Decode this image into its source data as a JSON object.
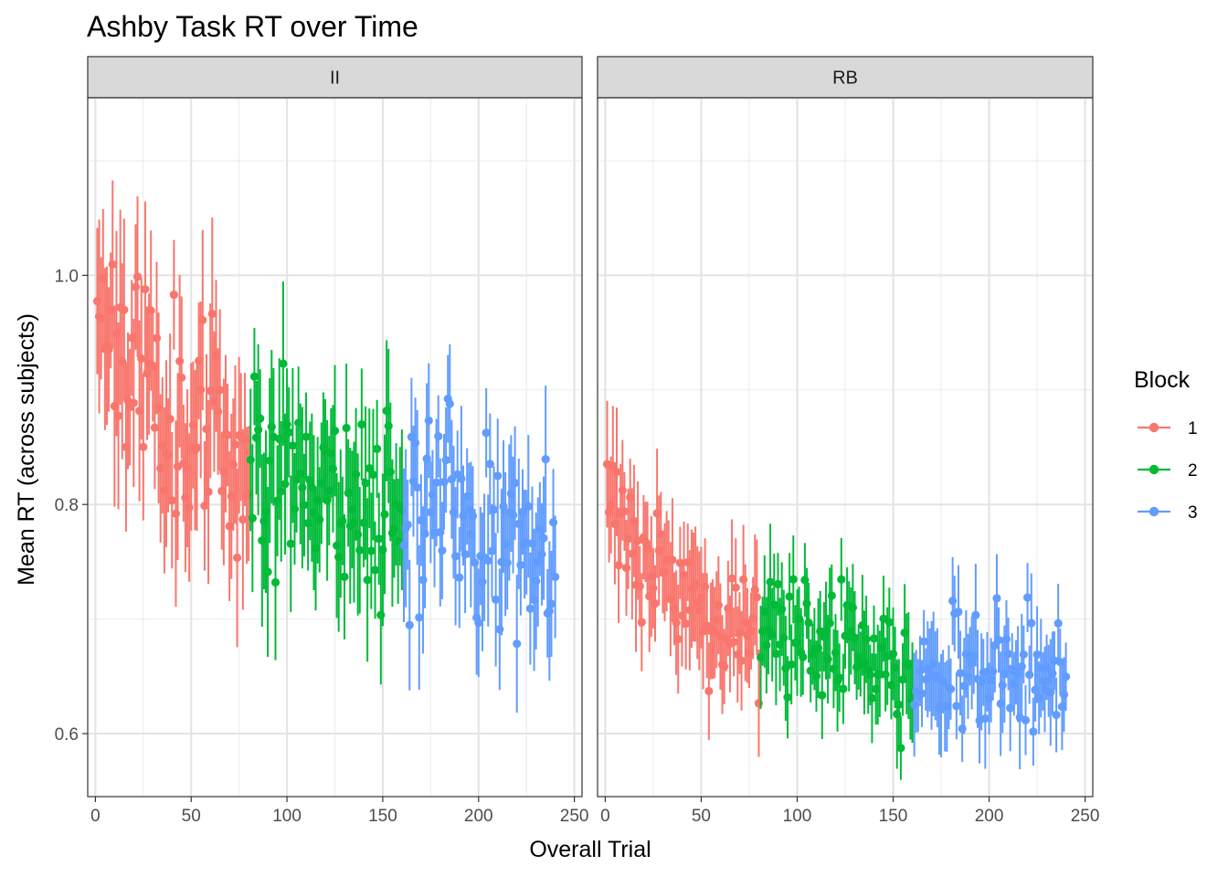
{
  "chart_data": {
    "type": "scatter",
    "subtype": "pointrange",
    "title": "Ashby Task RT over Time",
    "xlabel": "Overall Trial",
    "ylabel": "Mean RT (across subjects)",
    "xlim": [
      -4,
      254
    ],
    "ylim": [
      0.545,
      1.155
    ],
    "x_ticks": [
      0,
      50,
      100,
      150,
      200,
      250
    ],
    "y_ticks": [
      0.6,
      0.8,
      1.0
    ],
    "y_tick_labels": [
      "0.6",
      "0.8",
      "1.0"
    ],
    "grid": true,
    "legend": {
      "title": "Block",
      "placement": "right",
      "entries": [
        {
          "label": "1",
          "color": "#F8766D"
        },
        {
          "label": "2",
          "color": "#00BA38"
        },
        {
          "label": "3",
          "color": "#619CFF"
        }
      ]
    },
    "trials_per_block": 80,
    "total_trials": 240,
    "facets": [
      {
        "label": "II",
        "anchors": [
          {
            "x": 1,
            "y": 0.99,
            "err": 0.07
          },
          {
            "x": 20,
            "y": 0.92,
            "err": 0.07
          },
          {
            "x": 40,
            "y": 0.88,
            "err": 0.065
          },
          {
            "x": 60,
            "y": 0.86,
            "err": 0.065
          },
          {
            "x": 80,
            "y": 0.84,
            "err": 0.06
          },
          {
            "x": 100,
            "y": 0.835,
            "err": 0.055
          },
          {
            "x": 120,
            "y": 0.82,
            "err": 0.055
          },
          {
            "x": 140,
            "y": 0.8,
            "err": 0.055
          },
          {
            "x": 160,
            "y": 0.81,
            "err": 0.055
          },
          {
            "x": 180,
            "y": 0.8,
            "err": 0.05
          },
          {
            "x": 200,
            "y": 0.775,
            "err": 0.05
          },
          {
            "x": 220,
            "y": 0.76,
            "err": 0.05
          },
          {
            "x": 240,
            "y": 0.755,
            "err": 0.05
          }
        ],
        "noise": 0.045,
        "seed": 11
      },
      {
        "label": "RB",
        "anchors": [
          {
            "x": 1,
            "y": 0.8,
            "err": 0.05
          },
          {
            "x": 20,
            "y": 0.76,
            "err": 0.045
          },
          {
            "x": 40,
            "y": 0.72,
            "err": 0.042
          },
          {
            "x": 60,
            "y": 0.7,
            "err": 0.04
          },
          {
            "x": 80,
            "y": 0.685,
            "err": 0.04
          },
          {
            "x": 100,
            "y": 0.68,
            "err": 0.038
          },
          {
            "x": 120,
            "y": 0.67,
            "err": 0.038
          },
          {
            "x": 140,
            "y": 0.665,
            "err": 0.037
          },
          {
            "x": 160,
            "y": 0.645,
            "err": 0.037
          },
          {
            "x": 180,
            "y": 0.65,
            "err": 0.036
          },
          {
            "x": 200,
            "y": 0.655,
            "err": 0.036
          },
          {
            "x": 220,
            "y": 0.648,
            "err": 0.036
          },
          {
            "x": 240,
            "y": 0.648,
            "err": 0.036
          }
        ],
        "noise": 0.025,
        "seed": 29
      }
    ]
  }
}
